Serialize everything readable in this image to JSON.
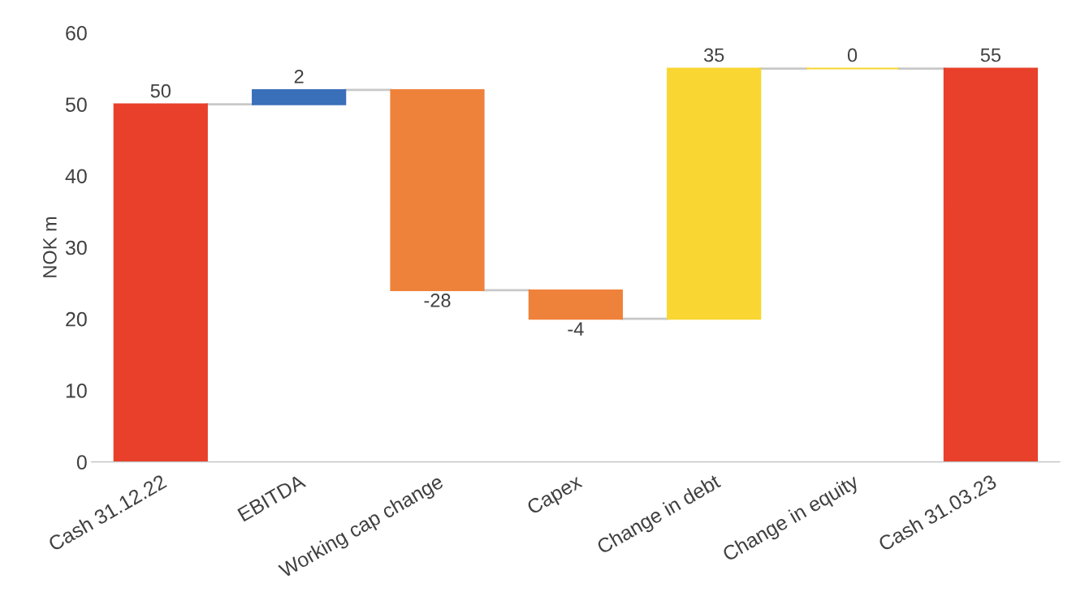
{
  "chart_data": {
    "type": "bar",
    "ylabel": "NOK m",
    "categories": [
      "Cash 31.12.22",
      "EBITDA",
      "Working cap change",
      "Capex",
      "Change in debt",
      "Change in equity",
      "Cash 31.03.23"
    ],
    "values": [
      50,
      2,
      -28,
      -4,
      35,
      0,
      55
    ],
    "base": [
      0,
      50,
      52,
      24,
      20,
      55,
      0
    ],
    "colors": [
      "#e8402a",
      "#3a6fba",
      "#ef823b",
      "#ef823b",
      "#f9d632",
      "#f9d632",
      "#e8402a"
    ],
    "ylim": [
      0,
      60
    ],
    "yticks": [
      0,
      10,
      20,
      30,
      40,
      50,
      60
    ],
    "data_labels": true,
    "grid": false
  }
}
